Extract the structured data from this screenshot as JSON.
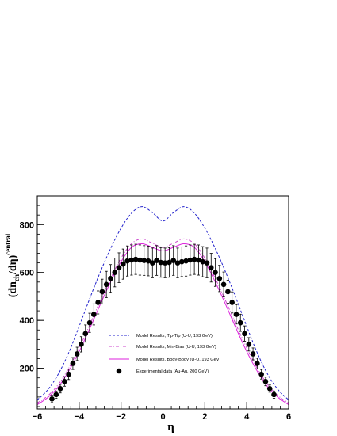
{
  "chart_data": {
    "type": "line",
    "title": "",
    "xlabel": "η",
    "ylabel": "(dn_ch/dη)^central",
    "ylabel_parts": {
      "main": "(dn",
      "sub": "ch",
      "mid": "/dη)",
      "sup": "central"
    },
    "xlim": [
      -6,
      6
    ],
    "ylim": [
      30,
      920
    ],
    "x_ticks": [
      -6,
      -4,
      -2,
      0,
      2,
      4,
      6
    ],
    "y_ticks": [
      200,
      400,
      600,
      800
    ],
    "grid": false,
    "legend_position": "lower-center",
    "series": [
      {
        "name": "Model Results, Tip-Tip (U-U, 193 GeV)",
        "style": "dashed",
        "color": "#2222cc",
        "x": [
          -6,
          -5.5,
          -5,
          -4.5,
          -4,
          -3.5,
          -3,
          -2.5,
          -2,
          -1.5,
          -1,
          -0.5,
          0,
          0.5,
          1,
          1.5,
          2,
          2.5,
          3,
          3.5,
          4,
          4.5,
          5,
          5.5,
          6
        ],
        "y": [
          68,
          110,
          175,
          265,
          375,
          490,
          600,
          700,
          785,
          848,
          875,
          850,
          815,
          850,
          875,
          848,
          785,
          700,
          600,
          490,
          375,
          265,
          175,
          110,
          68
        ]
      },
      {
        "name": "Model Results, Min-Bias (U-U, 193 GeV)",
        "style": "dash-dot",
        "color": "#cc44cc",
        "x": [
          -6,
          -5.5,
          -5,
          -4.5,
          -4,
          -3.5,
          -3,
          -2.5,
          -2,
          -1.5,
          -1,
          -0.5,
          0,
          0.5,
          1,
          1.5,
          2,
          2.5,
          3,
          3.5,
          4,
          4.5,
          5,
          5.5,
          6
        ],
        "y": [
          55,
          85,
          132,
          200,
          285,
          380,
          480,
          575,
          660,
          720,
          740,
          722,
          705,
          722,
          740,
          720,
          660,
          575,
          480,
          380,
          285,
          200,
          132,
          85,
          55
        ]
      },
      {
        "name": "Model Results, Body-Body (U-U, 193 GeV)",
        "style": "solid",
        "color": "#dd22dd",
        "x": [
          -6,
          -5.5,
          -5,
          -4.5,
          -4,
          -3.5,
          -3,
          -2.5,
          -2,
          -1.5,
          -1,
          -0.5,
          0,
          0.5,
          1,
          1.5,
          2,
          2.5,
          3,
          3.5,
          4,
          4.5,
          5,
          5.5,
          6
        ],
        "y": [
          48,
          78,
          122,
          188,
          270,
          365,
          465,
          560,
          645,
          705,
          720,
          705,
          690,
          705,
          720,
          705,
          645,
          560,
          465,
          365,
          270,
          188,
          122,
          78,
          48
        ]
      },
      {
        "name": "Experimental data (Au-Au, 200 GeV)",
        "style": "markers",
        "color": "#000000",
        "x": [
          -5.3,
          -5.1,
          -4.9,
          -4.7,
          -4.5,
          -4.3,
          -4.1,
          -3.9,
          -3.7,
          -3.5,
          -3.3,
          -3.1,
          -2.9,
          -2.7,
          -2.5,
          -2.3,
          -2.1,
          -1.9,
          -1.7,
          -1.5,
          -1.3,
          -1.1,
          -0.9,
          -0.7,
          -0.5,
          -0.3,
          -0.1,
          0.1,
          0.3,
          0.5,
          0.7,
          0.9,
          1.1,
          1.3,
          1.5,
          1.7,
          1.9,
          2.1,
          2.3,
          2.5,
          2.7,
          2.9,
          3.1,
          3.3,
          3.5,
          3.7,
          3.9,
          4.1,
          4.3,
          4.5,
          4.7,
          4.9,
          5.1,
          5.3
        ],
        "y": [
          72,
          90,
          115,
          145,
          175,
          220,
          260,
          300,
          345,
          390,
          425,
          475,
          520,
          550,
          575,
          600,
          620,
          635,
          648,
          652,
          655,
          652,
          650,
          648,
          640,
          650,
          642,
          640,
          642,
          650,
          640,
          645,
          648,
          652,
          655,
          652,
          645,
          640,
          620,
          600,
          575,
          550,
          520,
          475,
          425,
          390,
          345,
          300,
          260,
          220,
          175,
          145,
          115,
          90
        ],
        "err": [
          15,
          15,
          18,
          20,
          22,
          25,
          28,
          32,
          36,
          40,
          44,
          48,
          52,
          55,
          58,
          60,
          62,
          63,
          63,
          63,
          63,
          63,
          62,
          62,
          62,
          62,
          62,
          62,
          62,
          62,
          62,
          62,
          63,
          63,
          63,
          63,
          63,
          62,
          60,
          58,
          55,
          52,
          48,
          44,
          40,
          36,
          32,
          28,
          25,
          22,
          20,
          18,
          15,
          15
        ]
      }
    ]
  }
}
